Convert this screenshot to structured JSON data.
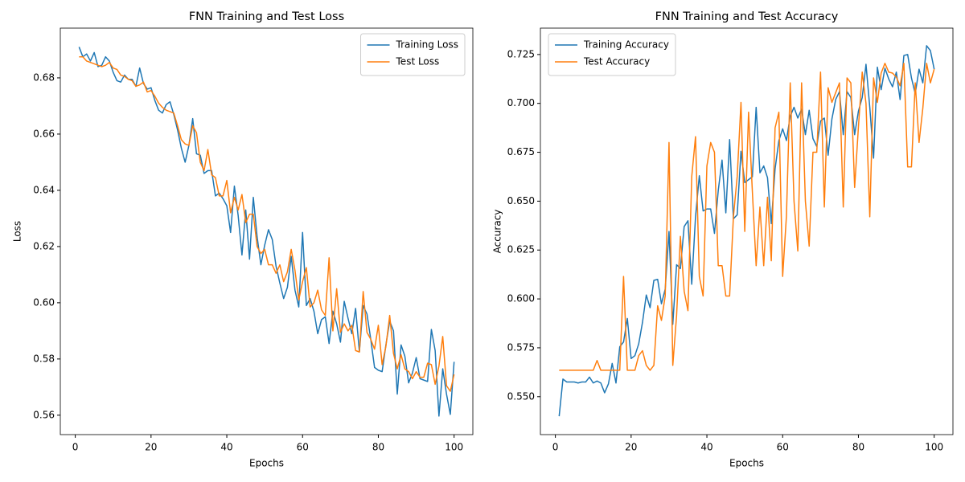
{
  "chart_data": [
    {
      "type": "line",
      "title": "FNN Training and Test Loss",
      "xlabel": "Epochs",
      "ylabel": "Loss",
      "legend": "upper right",
      "x": [
        1,
        2,
        3,
        4,
        5,
        6,
        7,
        8,
        9,
        10,
        11,
        12,
        13,
        14,
        15,
        16,
        17,
        18,
        19,
        20,
        21,
        22,
        23,
        24,
        25,
        26,
        27,
        28,
        29,
        30,
        31,
        32,
        33,
        34,
        35,
        36,
        37,
        38,
        39,
        40,
        41,
        42,
        43,
        44,
        45,
        46,
        47,
        48,
        49,
        50,
        51,
        52,
        53,
        54,
        55,
        56,
        57,
        58,
        59,
        60,
        61,
        62,
        63,
        64,
        65,
        66,
        67,
        68,
        69,
        70,
        71,
        72,
        73,
        74,
        75,
        76,
        77,
        78,
        79,
        80,
        81,
        82,
        83,
        84,
        85,
        86,
        87,
        88,
        89,
        90,
        91,
        92,
        93,
        94,
        95,
        96,
        97,
        98,
        99,
        100
      ],
      "xlim": [
        -3.95,
        104.95
      ],
      "xticks": [
        0,
        20,
        40,
        60,
        80,
        100
      ],
      "ylim": [
        0.5531,
        0.6977
      ],
      "yticks": [
        0.56,
        0.58,
        {
          "value": 0.6,
          "label": "0.60"
        },
        0.62,
        0.64,
        0.66,
        0.68
      ],
      "series": [
        {
          "name": "Training Loss",
          "color": "#1f77b4",
          "values": [
            0.691,
            0.6875,
            0.6885,
            0.686,
            0.689,
            0.684,
            0.6845,
            0.6875,
            0.686,
            0.682,
            0.679,
            0.6785,
            0.681,
            0.6795,
            0.6795,
            0.677,
            0.6835,
            0.678,
            0.676,
            0.6765,
            0.672,
            0.6685,
            0.6675,
            0.6705,
            0.6715,
            0.667,
            0.6615,
            0.655,
            0.65,
            0.656,
            0.6655,
            0.653,
            0.6525,
            0.646,
            0.647,
            0.647,
            0.638,
            0.639,
            0.637,
            0.6345,
            0.625,
            0.6415,
            0.631,
            0.617,
            0.633,
            0.6155,
            0.6375,
            0.6235,
            0.6135,
            0.6205,
            0.626,
            0.6225,
            0.613,
            0.607,
            0.6015,
            0.6055,
            0.6165,
            0.6045,
            0.5985,
            0.625,
            0.599,
            0.6015,
            0.597,
            0.589,
            0.594,
            0.595,
            0.5855,
            0.597,
            0.5925,
            0.586,
            0.6005,
            0.5945,
            0.589,
            0.598,
            0.5825,
            0.599,
            0.596,
            0.587,
            0.577,
            0.576,
            0.5755,
            0.585,
            0.5935,
            0.59,
            0.5675,
            0.585,
            0.581,
            0.5715,
            0.575,
            0.5805,
            0.573,
            0.5725,
            0.572,
            0.5905,
            0.583,
            0.5597,
            0.5765,
            0.5675,
            0.5603,
            0.579
          ]
        },
        {
          "name": "Test Loss",
          "color": "#ff7f0e",
          "values": [
            0.6875,
            0.6875,
            0.686,
            0.6855,
            0.685,
            0.6845,
            0.684,
            0.6845,
            0.6855,
            0.6835,
            0.683,
            0.681,
            0.6805,
            0.6795,
            0.679,
            0.677,
            0.6775,
            0.6785,
            0.675,
            0.6755,
            0.6735,
            0.671,
            0.6695,
            0.6685,
            0.668,
            0.6675,
            0.663,
            0.658,
            0.6565,
            0.656,
            0.663,
            0.6605,
            0.65,
            0.647,
            0.6545,
            0.6455,
            0.6445,
            0.638,
            0.638,
            0.6435,
            0.632,
            0.6375,
            0.633,
            0.6385,
            0.6285,
            0.6315,
            0.6315,
            0.62,
            0.6175,
            0.619,
            0.6135,
            0.6135,
            0.6105,
            0.6135,
            0.6075,
            0.611,
            0.619,
            0.6115,
            0.601,
            0.6075,
            0.6125,
            0.5985,
            0.6,
            0.6045,
            0.5975,
            0.5955,
            0.616,
            0.59,
            0.605,
            0.5895,
            0.5925,
            0.59,
            0.592,
            0.583,
            0.5825,
            0.604,
            0.5895,
            0.587,
            0.5835,
            0.592,
            0.578,
            0.5845,
            0.5955,
            0.582,
            0.5765,
            0.5815,
            0.5765,
            0.5755,
            0.573,
            0.5755,
            0.5735,
            0.5735,
            0.5785,
            0.578,
            0.571,
            0.5775,
            0.588,
            0.5705,
            0.5685,
            0.5745
          ]
        }
      ]
    },
    {
      "type": "line",
      "title": "FNN Training and Test Accuracy",
      "xlabel": "Epochs",
      "ylabel": "Accuracy",
      "legend": "upper left",
      "x": [
        1,
        2,
        3,
        4,
        5,
        6,
        7,
        8,
        9,
        10,
        11,
        12,
        13,
        14,
        15,
        16,
        17,
        18,
        19,
        20,
        21,
        22,
        23,
        24,
        25,
        26,
        27,
        28,
        29,
        30,
        31,
        32,
        33,
        34,
        35,
        36,
        37,
        38,
        39,
        40,
        41,
        42,
        43,
        44,
        45,
        46,
        47,
        48,
        49,
        50,
        51,
        52,
        53,
        54,
        55,
        56,
        57,
        58,
        59,
        60,
        61,
        62,
        63,
        64,
        65,
        66,
        67,
        68,
        69,
        70,
        71,
        72,
        73,
        74,
        75,
        76,
        77,
        78,
        79,
        80,
        81,
        82,
        83,
        84,
        85,
        86,
        87,
        88,
        89,
        90,
        91,
        92,
        93,
        94,
        95,
        96,
        97,
        98,
        99,
        100
      ],
      "xlim": [
        -3.95,
        104.95
      ],
      "xticks": [
        0,
        20,
        40,
        60,
        80,
        100
      ],
      "ylim": [
        0.5306,
        0.7385
      ],
      "yticks": [
        {
          "value": 0.55,
          "label": "0.550"
        },
        0.575,
        {
          "value": 0.6,
          "label": "0.600"
        },
        0.625,
        {
          "value": 0.65,
          "label": "0.650"
        },
        0.675,
        {
          "value": 0.7,
          "label": "0.700"
        },
        0.725
      ],
      "series": [
        {
          "name": "Training Accuracy",
          "color": "#1f77b4",
          "values": [
            0.54,
            0.559,
            0.5575,
            0.5575,
            0.5575,
            0.557,
            0.5575,
            0.5575,
            0.56,
            0.557,
            0.558,
            0.557,
            0.552,
            0.5565,
            0.567,
            0.557,
            0.5755,
            0.578,
            0.59,
            0.5695,
            0.571,
            0.577,
            0.588,
            0.602,
            0.5955,
            0.6095,
            0.61,
            0.5975,
            0.605,
            0.6345,
            0.587,
            0.6175,
            0.6155,
            0.637,
            0.64,
            0.6075,
            0.642,
            0.663,
            0.645,
            0.646,
            0.646,
            0.6335,
            0.6555,
            0.671,
            0.644,
            0.6815,
            0.641,
            0.643,
            0.6755,
            0.6595,
            0.661,
            0.6625,
            0.698,
            0.6645,
            0.668,
            0.662,
            0.6385,
            0.6665,
            0.681,
            0.687,
            0.681,
            0.6935,
            0.698,
            0.6925,
            0.697,
            0.684,
            0.6965,
            0.682,
            0.678,
            0.691,
            0.6925,
            0.6735,
            0.692,
            0.702,
            0.706,
            0.684,
            0.706,
            0.703,
            0.684,
            0.696,
            0.703,
            0.72,
            0.698,
            0.672,
            0.7185,
            0.707,
            0.718,
            0.7125,
            0.7085,
            0.716,
            0.702,
            0.7245,
            0.725,
            0.713,
            0.705,
            0.7175,
            0.7105,
            0.7295,
            0.727,
            0.7175
          ]
        },
        {
          "name": "Test Accuracy",
          "color": "#ff7f0e",
          "values": [
            0.5635,
            0.5635,
            0.5635,
            0.5635,
            0.5635,
            0.5635,
            0.5635,
            0.5635,
            0.5635,
            0.5635,
            0.5685,
            0.5635,
            0.5635,
            0.5635,
            0.5635,
            0.5635,
            0.5635,
            0.6115,
            0.5635,
            0.5635,
            0.5635,
            0.571,
            0.5735,
            0.566,
            0.5635,
            0.566,
            0.5965,
            0.589,
            0.6015,
            0.68,
            0.566,
            0.5915,
            0.632,
            0.604,
            0.594,
            0.6625,
            0.683,
            0.6115,
            0.6015,
            0.668,
            0.68,
            0.675,
            0.617,
            0.617,
            0.6015,
            0.6015,
            0.642,
            0.6625,
            0.7005,
            0.6345,
            0.6955,
            0.655,
            0.617,
            0.647,
            0.617,
            0.652,
            0.6195,
            0.6875,
            0.6955,
            0.6115,
            0.6425,
            0.7105,
            0.65,
            0.6245,
            0.7105,
            0.65,
            0.627,
            0.675,
            0.675,
            0.716,
            0.647,
            0.708,
            0.7005,
            0.7055,
            0.7105,
            0.647,
            0.713,
            0.7105,
            0.657,
            0.688,
            0.716,
            0.7,
            0.642,
            0.713,
            0.7005,
            0.7155,
            0.7205,
            0.716,
            0.7155,
            0.7135,
            0.709,
            0.7205,
            0.6675,
            0.6675,
            0.7105,
            0.68,
            0.6975,
            0.7205,
            0.7105,
            0.7175
          ]
        }
      ]
    }
  ]
}
